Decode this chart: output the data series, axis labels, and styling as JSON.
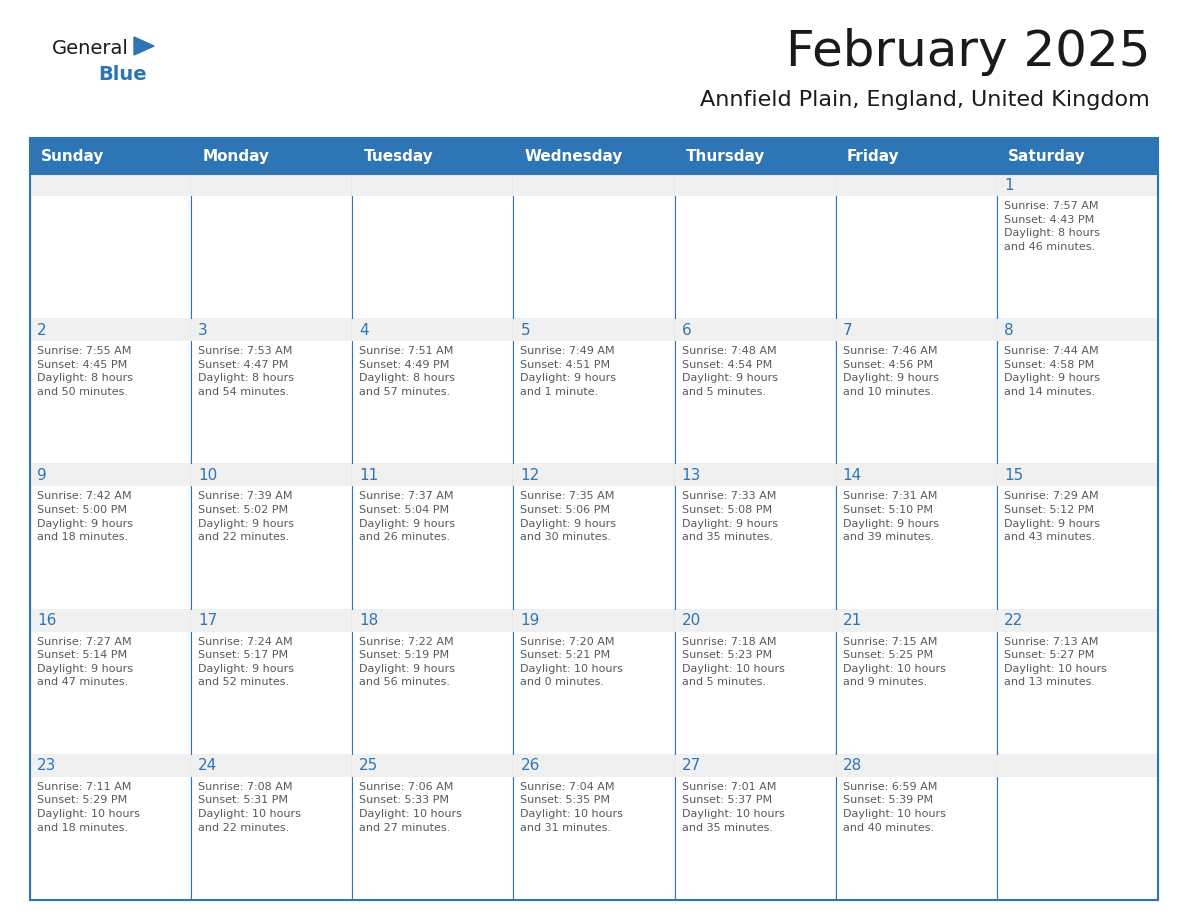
{
  "title": "February 2025",
  "subtitle": "Annfield Plain, England, United Kingdom",
  "days_of_week": [
    "Sunday",
    "Monday",
    "Tuesday",
    "Wednesday",
    "Thursday",
    "Friday",
    "Saturday"
  ],
  "header_bg": "#2e75b6",
  "header_text": "#ffffff",
  "cell_bg_gray": "#f0f0f0",
  "cell_bg_white": "#ffffff",
  "border_color": "#2e75b6",
  "text_color": "#595959",
  "day_num_color": "#2e75b6",
  "general_black": "#1a1a1a",
  "general_blue_color": "#2e75b6",
  "calendar_data": [
    [
      {
        "day": "",
        "info": ""
      },
      {
        "day": "",
        "info": ""
      },
      {
        "day": "",
        "info": ""
      },
      {
        "day": "",
        "info": ""
      },
      {
        "day": "",
        "info": ""
      },
      {
        "day": "",
        "info": ""
      },
      {
        "day": "1",
        "info": "Sunrise: 7:57 AM\nSunset: 4:43 PM\nDaylight: 8 hours\nand 46 minutes."
      }
    ],
    [
      {
        "day": "2",
        "info": "Sunrise: 7:55 AM\nSunset: 4:45 PM\nDaylight: 8 hours\nand 50 minutes."
      },
      {
        "day": "3",
        "info": "Sunrise: 7:53 AM\nSunset: 4:47 PM\nDaylight: 8 hours\nand 54 minutes."
      },
      {
        "day": "4",
        "info": "Sunrise: 7:51 AM\nSunset: 4:49 PM\nDaylight: 8 hours\nand 57 minutes."
      },
      {
        "day": "5",
        "info": "Sunrise: 7:49 AM\nSunset: 4:51 PM\nDaylight: 9 hours\nand 1 minute."
      },
      {
        "day": "6",
        "info": "Sunrise: 7:48 AM\nSunset: 4:54 PM\nDaylight: 9 hours\nand 5 minutes."
      },
      {
        "day": "7",
        "info": "Sunrise: 7:46 AM\nSunset: 4:56 PM\nDaylight: 9 hours\nand 10 minutes."
      },
      {
        "day": "8",
        "info": "Sunrise: 7:44 AM\nSunset: 4:58 PM\nDaylight: 9 hours\nand 14 minutes."
      }
    ],
    [
      {
        "day": "9",
        "info": "Sunrise: 7:42 AM\nSunset: 5:00 PM\nDaylight: 9 hours\nand 18 minutes."
      },
      {
        "day": "10",
        "info": "Sunrise: 7:39 AM\nSunset: 5:02 PM\nDaylight: 9 hours\nand 22 minutes."
      },
      {
        "day": "11",
        "info": "Sunrise: 7:37 AM\nSunset: 5:04 PM\nDaylight: 9 hours\nand 26 minutes."
      },
      {
        "day": "12",
        "info": "Sunrise: 7:35 AM\nSunset: 5:06 PM\nDaylight: 9 hours\nand 30 minutes."
      },
      {
        "day": "13",
        "info": "Sunrise: 7:33 AM\nSunset: 5:08 PM\nDaylight: 9 hours\nand 35 minutes."
      },
      {
        "day": "14",
        "info": "Sunrise: 7:31 AM\nSunset: 5:10 PM\nDaylight: 9 hours\nand 39 minutes."
      },
      {
        "day": "15",
        "info": "Sunrise: 7:29 AM\nSunset: 5:12 PM\nDaylight: 9 hours\nand 43 minutes."
      }
    ],
    [
      {
        "day": "16",
        "info": "Sunrise: 7:27 AM\nSunset: 5:14 PM\nDaylight: 9 hours\nand 47 minutes."
      },
      {
        "day": "17",
        "info": "Sunrise: 7:24 AM\nSunset: 5:17 PM\nDaylight: 9 hours\nand 52 minutes."
      },
      {
        "day": "18",
        "info": "Sunrise: 7:22 AM\nSunset: 5:19 PM\nDaylight: 9 hours\nand 56 minutes."
      },
      {
        "day": "19",
        "info": "Sunrise: 7:20 AM\nSunset: 5:21 PM\nDaylight: 10 hours\nand 0 minutes."
      },
      {
        "day": "20",
        "info": "Sunrise: 7:18 AM\nSunset: 5:23 PM\nDaylight: 10 hours\nand 5 minutes."
      },
      {
        "day": "21",
        "info": "Sunrise: 7:15 AM\nSunset: 5:25 PM\nDaylight: 10 hours\nand 9 minutes."
      },
      {
        "day": "22",
        "info": "Sunrise: 7:13 AM\nSunset: 5:27 PM\nDaylight: 10 hours\nand 13 minutes."
      }
    ],
    [
      {
        "day": "23",
        "info": "Sunrise: 7:11 AM\nSunset: 5:29 PM\nDaylight: 10 hours\nand 18 minutes."
      },
      {
        "day": "24",
        "info": "Sunrise: 7:08 AM\nSunset: 5:31 PM\nDaylight: 10 hours\nand 22 minutes."
      },
      {
        "day": "25",
        "info": "Sunrise: 7:06 AM\nSunset: 5:33 PM\nDaylight: 10 hours\nand 27 minutes."
      },
      {
        "day": "26",
        "info": "Sunrise: 7:04 AM\nSunset: 5:35 PM\nDaylight: 10 hours\nand 31 minutes."
      },
      {
        "day": "27",
        "info": "Sunrise: 7:01 AM\nSunset: 5:37 PM\nDaylight: 10 hours\nand 35 minutes."
      },
      {
        "day": "28",
        "info": "Sunrise: 6:59 AM\nSunset: 5:39 PM\nDaylight: 10 hours\nand 40 minutes."
      },
      {
        "day": "",
        "info": ""
      }
    ]
  ]
}
